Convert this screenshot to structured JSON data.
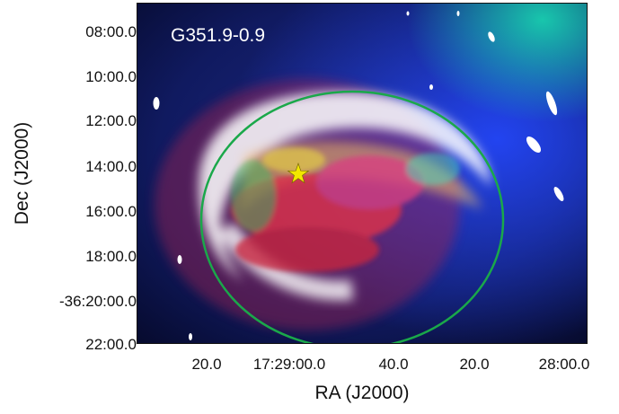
{
  "figure": {
    "title": "G351.9-0.9",
    "xlabel": "RA (J2000)",
    "ylabel": "Dec (J2000)",
    "y_ticks": [
      "08:00.0",
      "10:00.0",
      "12:00.0",
      "14:00.0",
      "16:00.0",
      "18:00.0",
      "-36:20:00.0",
      "22:00.0"
    ],
    "x_ticks": [
      "20.0",
      "17:29:00.0",
      "40.0",
      "20.0",
      "28:00.0"
    ],
    "colors": {
      "ellipse": "#1aa84a",
      "star": "#f2e600",
      "background": "#0a1450"
    },
    "markers": {
      "ellipse": "circle outline of source",
      "star": "star marker near remnant center"
    }
  }
}
